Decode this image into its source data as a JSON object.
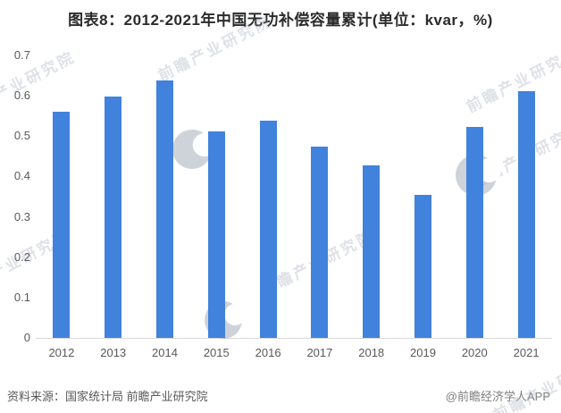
{
  "title": "图表8：2012-2021年中国无功补偿容量累计(单位：kvar，%)",
  "chart_data": {
    "type": "bar",
    "title": "图表8：2012-2021年中国无功补偿容量累计(单位：kvar，%)",
    "categories": [
      "2012",
      "2013",
      "2014",
      "2015",
      "2016",
      "2017",
      "2018",
      "2019",
      "2020",
      "2021"
    ],
    "values": [
      0.56,
      0.598,
      0.638,
      0.512,
      0.539,
      0.475,
      0.428,
      0.355,
      0.523,
      0.611
    ],
    "xlabel": "",
    "ylabel": "",
    "ylim": [
      0,
      0.7
    ],
    "ytick_labels": [
      "0",
      "0.1",
      "0.2",
      "0.3",
      "0.4",
      "0.5",
      "0.6",
      "0.7"
    ],
    "grid": false,
    "legend": false,
    "bar_color": "#4182dc"
  },
  "footer": {
    "source": "资料来源：国家统计局 前瞻产业研究院",
    "credit": "@前瞻经济学人APP"
  },
  "watermark": {
    "text": "前瞻产业研究院"
  },
  "colors": {
    "bar": "#4182dc",
    "axis_line": "#d9d9d9",
    "tick_text": "#595959",
    "title_text": "#2b2b2b",
    "footer_source_text": "#595959",
    "footer_credit_text": "#7d7d7d",
    "watermark_text": "#a8b1be"
  }
}
